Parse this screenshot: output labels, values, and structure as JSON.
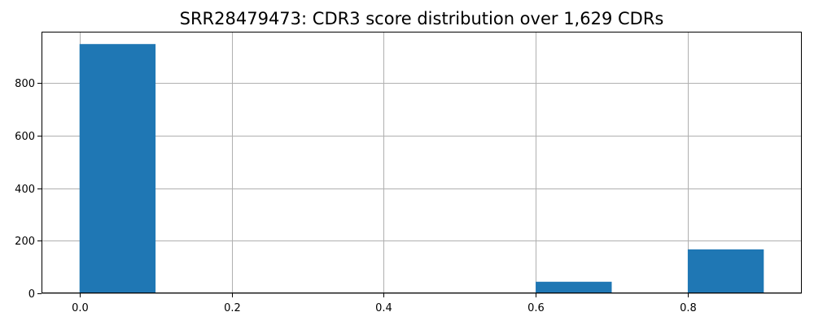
{
  "chart_data": {
    "type": "bar",
    "subtype": "histogram",
    "title": "SRR28479473: CDR3 score distribution over 1,629 CDRs",
    "xlabel": "",
    "ylabel": "",
    "bin_edges": [
      0.0,
      0.1,
      0.2,
      0.3,
      0.4,
      0.5,
      0.6,
      0.7,
      0.8,
      0.9
    ],
    "values": [
      948,
      0,
      0,
      0,
      0,
      2,
      44,
      0,
      167
    ],
    "xlim": [
      -0.05,
      0.95
    ],
    "ylim": [
      0,
      995
    ],
    "xticks": [
      0.0,
      0.2,
      0.4,
      0.6,
      0.8
    ],
    "xtick_labels": [
      "0.0",
      "0.2",
      "0.4",
      "0.6",
      "0.8"
    ],
    "yticks": [
      0,
      200,
      400,
      600,
      800
    ],
    "ytick_labels": [
      "0",
      "200",
      "400",
      "600",
      "800"
    ],
    "grid": true,
    "bar_color": "#1f77b4"
  }
}
